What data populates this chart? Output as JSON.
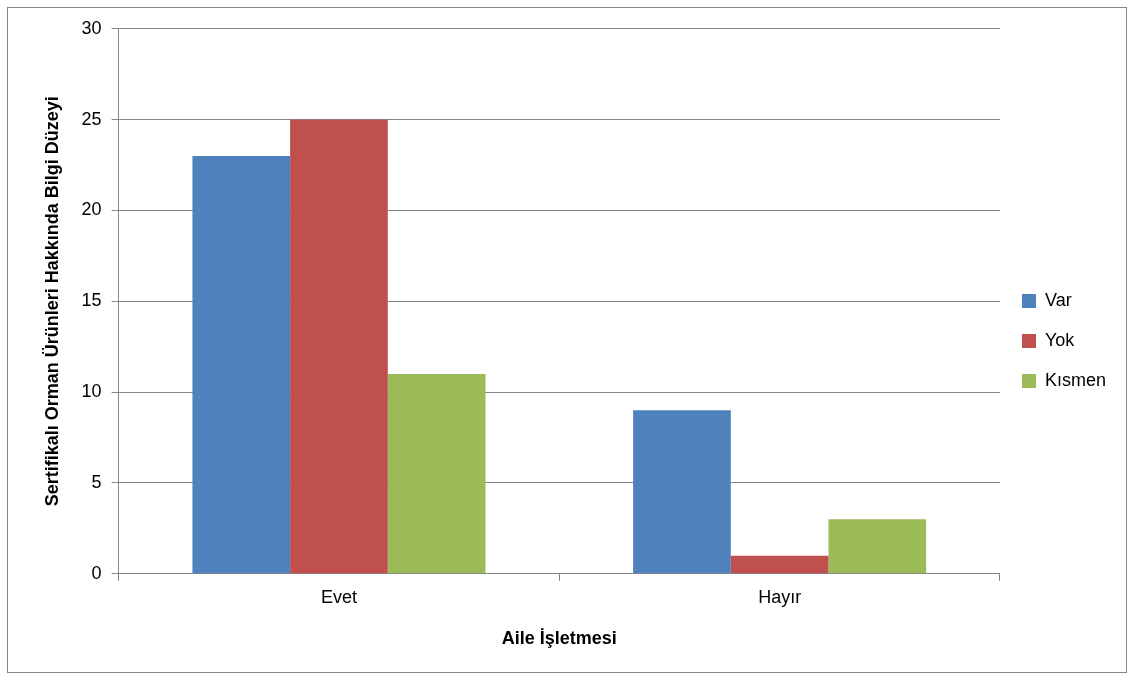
{
  "chart_data": {
    "type": "bar",
    "xlabel": "Aile İşletmesi",
    "ylabel": "Sertifikalı Orman Ürünleri Hakkında Bilgi Düzeyi",
    "categories": [
      "Evet",
      "Hayır"
    ],
    "series": [
      {
        "name": "Var",
        "color": "#4f81bd",
        "values": [
          23,
          9
        ]
      },
      {
        "name": "Yok",
        "color": "#c0504d",
        "values": [
          25,
          1
        ]
      },
      {
        "name": "Kısmen",
        "color": "#9bbb59",
        "values": [
          11,
          3
        ]
      }
    ],
    "ylim": [
      0,
      30
    ],
    "yticks": [
      0,
      5,
      10,
      15,
      20,
      25,
      30
    ],
    "grid": "y",
    "legend": "right"
  }
}
